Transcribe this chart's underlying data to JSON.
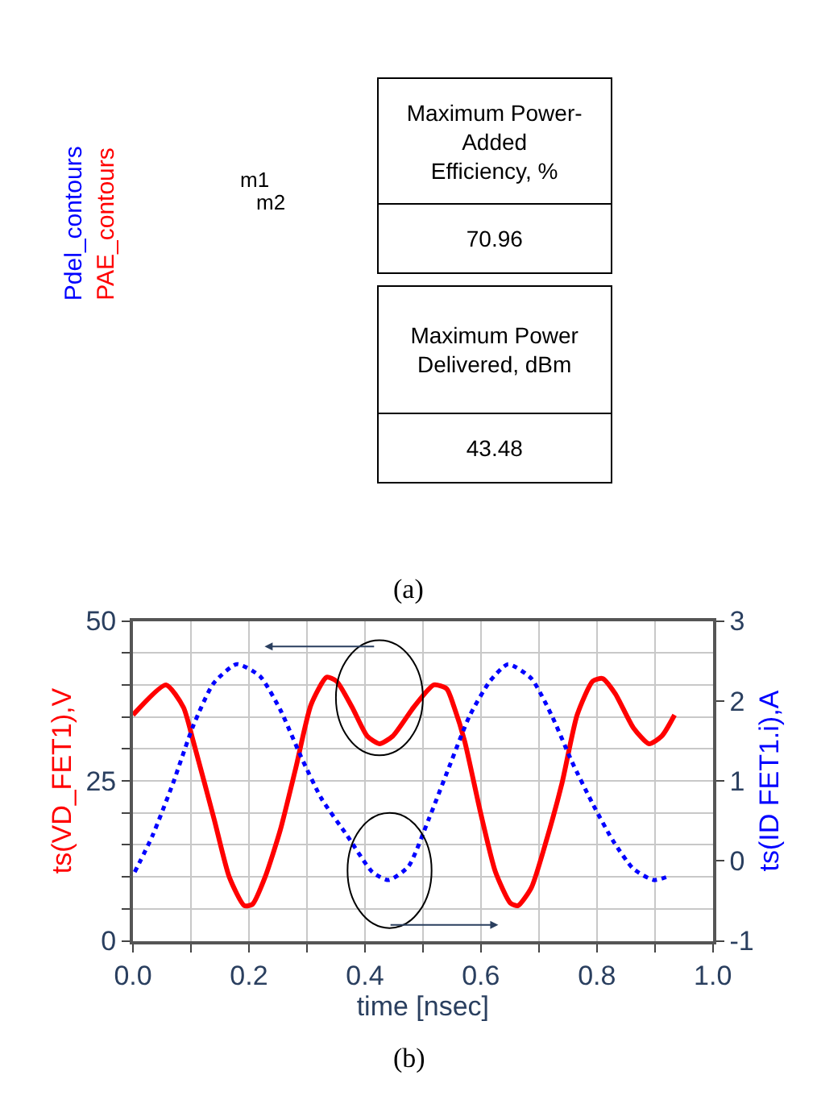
{
  "chart_data": [
    {
      "type": "other",
      "annotations": [
        "Pdel_contours",
        "PAE_contours",
        "m1",
        "m2",
        "Maximum Power-Added Efficiency, %",
        "70.96",
        "Maximum Power Delivered, dBm",
        "43.48",
        "(a)"
      ]
    },
    {
      "type": "line",
      "xlabel": "time [nsec]",
      "ylabel": "ts(VD_FET1),V",
      "y2label": "ts(ID FET1.i),A",
      "xlim": [
        0,
        1
      ],
      "xticks": [
        {
          "value": 0,
          "label": "0.0"
        },
        {
          "value": 0.1,
          "label": null
        },
        {
          "value": 0.2,
          "label": "0.2"
        },
        {
          "value": 0.3,
          "label": null
        },
        {
          "value": 0.4,
          "label": "0.4"
        },
        {
          "value": 0.5,
          "label": null
        },
        {
          "value": 0.6,
          "label": "0.6"
        },
        {
          "value": 0.7,
          "label": null
        },
        {
          "value": 0.8,
          "label": "0.8"
        },
        {
          "value": 0.9,
          "label": null
        },
        {
          "value": 1.0,
          "label": "1.0"
        }
      ],
      "ylim": [
        0,
        50
      ],
      "yticks": [
        0,
        {
          "value": 5,
          "label": null
        },
        {
          "value": 10,
          "label": null
        },
        {
          "value": 15,
          "label": null
        },
        {
          "value": 20,
          "label": null
        },
        25,
        {
          "value": 30,
          "label": null
        },
        {
          "value": 35,
          "label": null
        },
        {
          "value": 40,
          "label": null
        },
        {
          "value": 45,
          "label": null
        },
        50
      ],
      "y2lim": [
        -1,
        3
      ],
      "y2ticks": [
        -1,
        0,
        1,
        2,
        3
      ],
      "grid": true,
      "marker": "none",
      "annotations": [
        "(b)"
      ],
      "series": [
        {
          "color": "#ff0000",
          "line_style": "solid",
          "x": [
            0,
            0.057,
            0.087,
            0.104,
            0.14,
            0.166,
            0.192,
            0.206,
            0.228,
            0.254,
            0.281,
            0.307,
            0.334,
            0.351,
            0.378,
            0.404,
            0.425,
            0.448,
            0.484,
            0.519,
            0.541,
            0.554,
            0.572,
            0.598,
            0.625,
            0.651,
            0.664,
            0.687,
            0.713,
            0.74,
            0.766,
            0.793,
            0.81,
            0.832,
            0.863,
            0.89,
            0.912,
            0.934
          ],
          "values": [
            35.3,
            40.0,
            36.5,
            31.2,
            19.0,
            10.0,
            5.5,
            5.7,
            10.0,
            17.3,
            27.1,
            36.9,
            41.2,
            40.6,
            36.5,
            32.0,
            30.8,
            32.0,
            36.5,
            40.0,
            39.4,
            36.5,
            31.2,
            20.6,
            10.8,
            5.9,
            5.5,
            8.3,
            15.7,
            24.7,
            35.3,
            40.6,
            41.0,
            38.6,
            33.3,
            30.8,
            32.0,
            35.3
          ]
        },
        {
          "color": "#0000ff",
          "line_style": "dotted",
          "axis": "y2",
          "x": [
            0.003,
            0.034,
            0.069,
            0.104,
            0.139,
            0.179,
            0.219,
            0.254,
            0.29,
            0.325,
            0.369,
            0.413,
            0.441,
            0.475,
            0.51,
            0.545,
            0.581,
            0.616,
            0.647,
            0.687,
            0.722,
            0.757,
            0.793,
            0.828,
            0.863,
            0.898,
            0.925
          ],
          "values": [
            -0.14,
            0.32,
            0.97,
            1.69,
            2.22,
            2.46,
            2.31,
            1.89,
            1.3,
            0.78,
            0.32,
            -0.14,
            -0.24,
            -0.07,
            0.52,
            1.17,
            1.82,
            2.25,
            2.46,
            2.28,
            1.82,
            1.24,
            0.71,
            0.25,
            -0.1,
            -0.24,
            -0.19
          ]
        }
      ]
    }
  ]
}
